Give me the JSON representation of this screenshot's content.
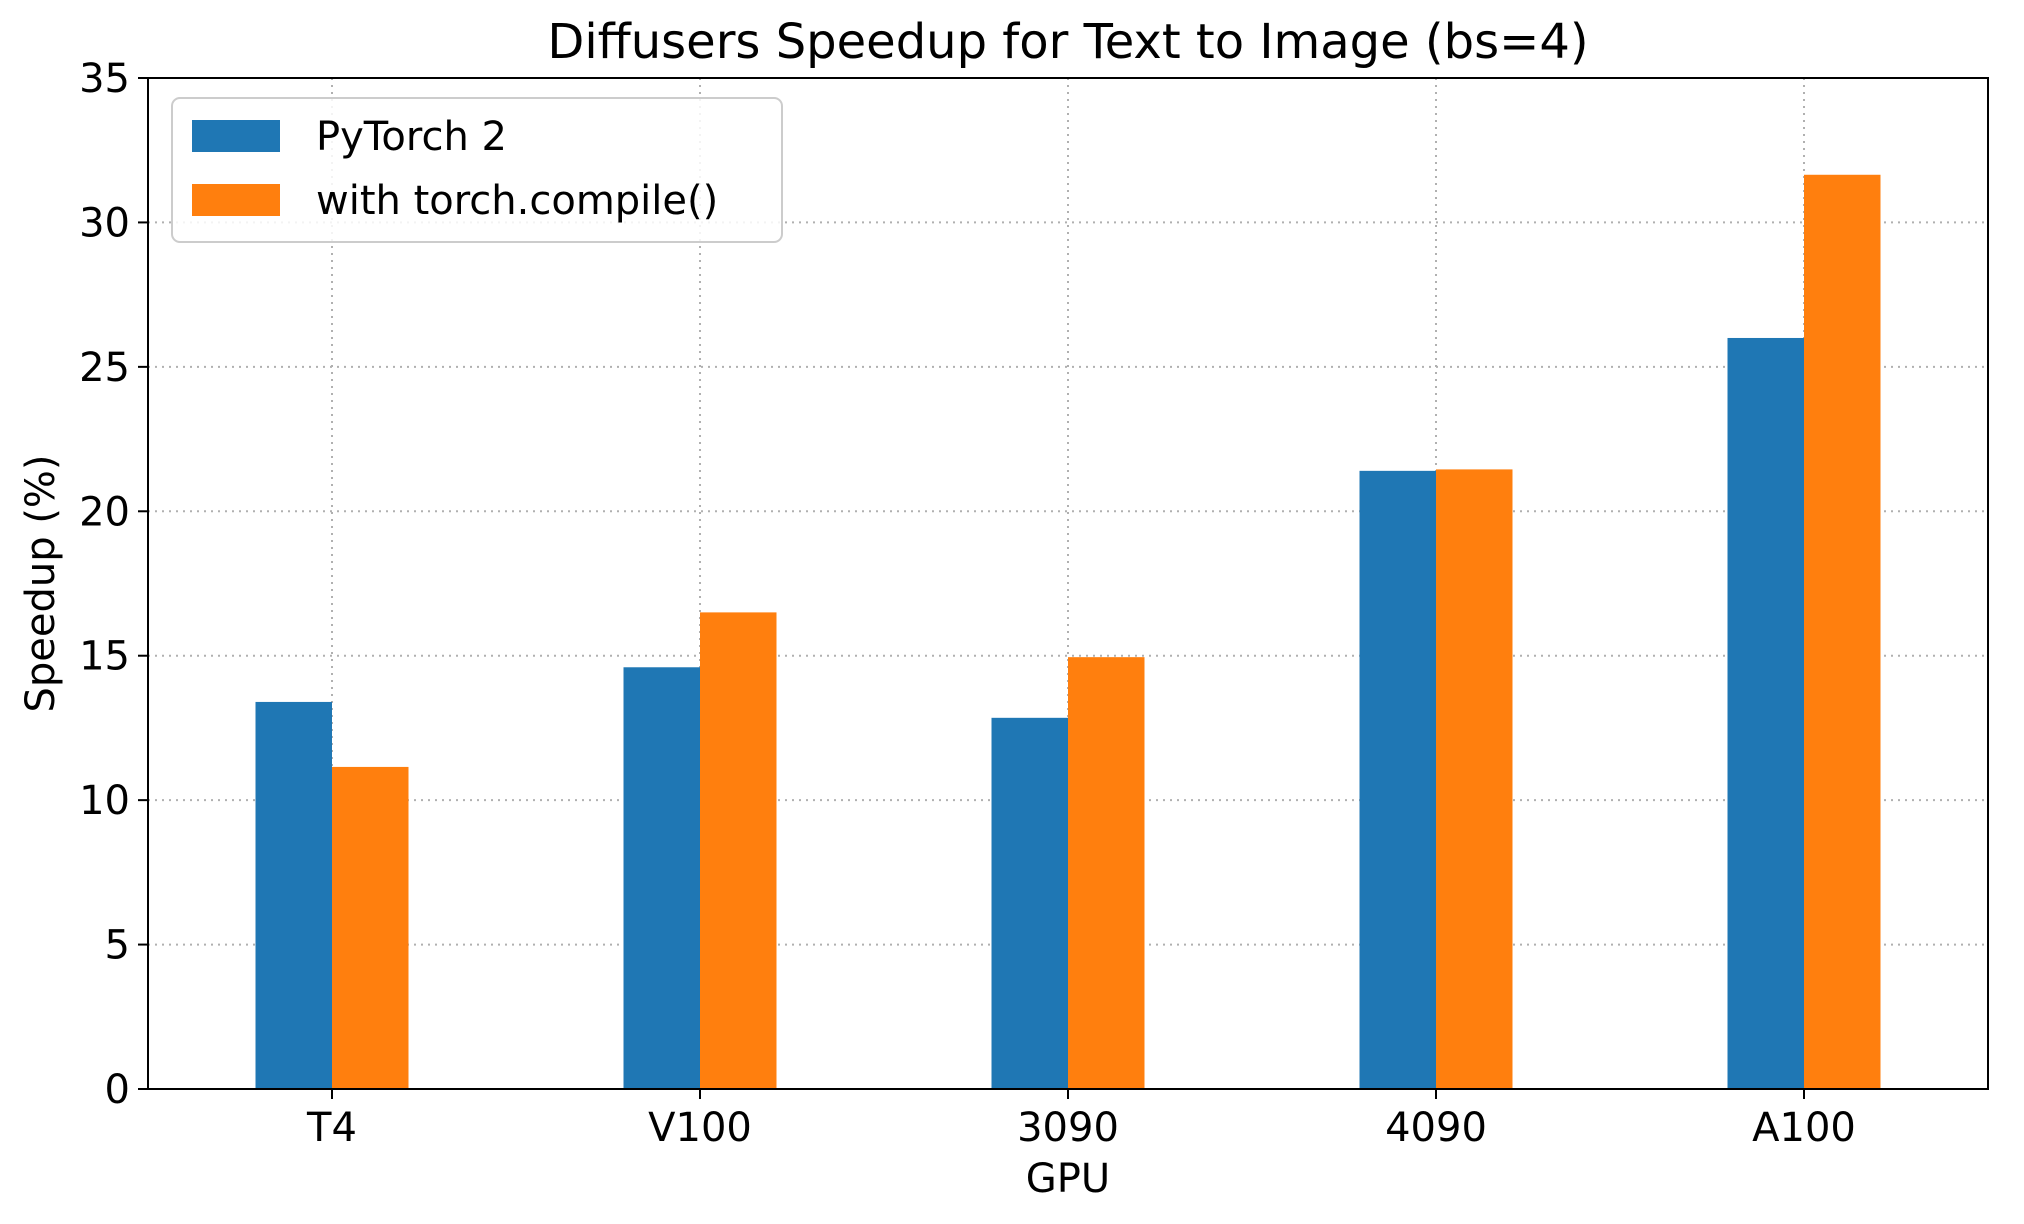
{
  "chart_data": {
    "type": "bar",
    "title": "Diffusers Speedup for Text to Image (bs=4)",
    "xlabel": "GPU",
    "ylabel": "Speedup (%)",
    "categories": [
      "T4",
      "V100",
      "3090",
      "4090",
      "A100"
    ],
    "series": [
      {
        "name": "PyTorch 2",
        "color": "#1f77b4",
        "values": [
          13.4,
          14.6,
          12.85,
          21.4,
          26.0
        ]
      },
      {
        "name": "with torch.compile()",
        "color": "#ff7f0e",
        "values": [
          11.15,
          16.5,
          14.95,
          21.45,
          31.65
        ]
      }
    ],
    "ylim": [
      0,
      35
    ],
    "yticks": [
      "0",
      "5",
      "10",
      "15",
      "20",
      "25",
      "30",
      "35"
    ],
    "grid": true,
    "legend_position": "top-left"
  }
}
